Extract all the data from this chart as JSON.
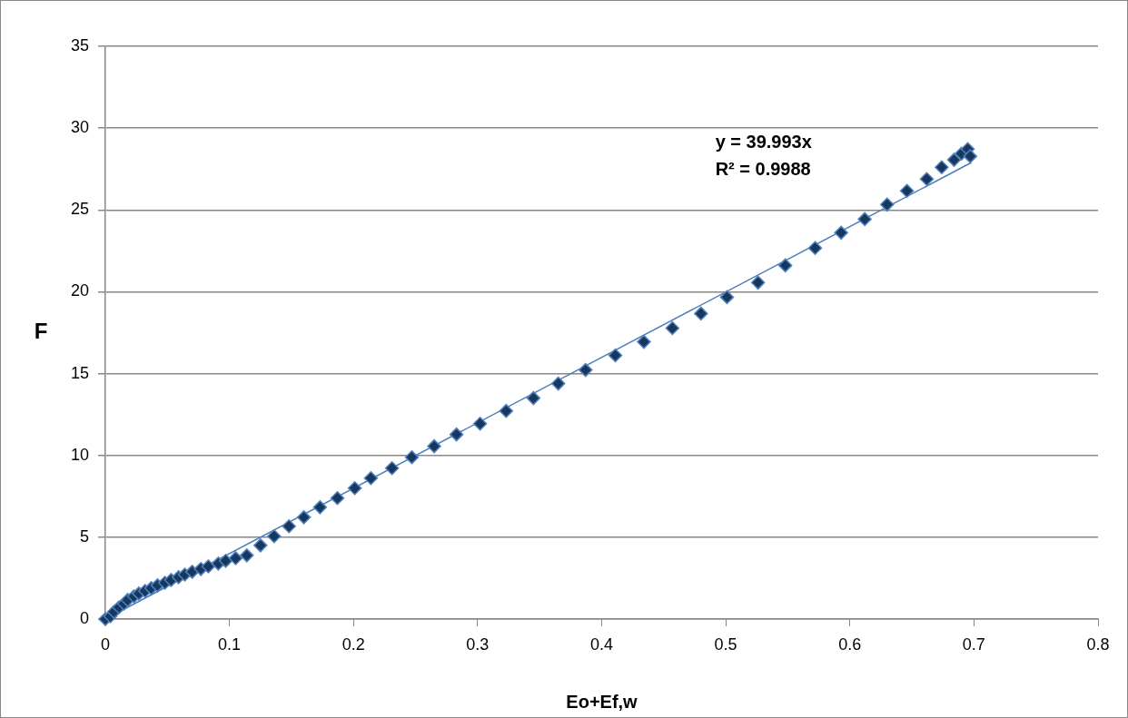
{
  "chart_data": {
    "type": "scatter",
    "xlabel": "Eo+Ef,w",
    "ylabel": "F",
    "xlim": [
      0,
      0.8
    ],
    "xticks": [
      0,
      0.1,
      0.2,
      0.3,
      0.4,
      0.5,
      0.6,
      0.7,
      0.8
    ],
    "ylim": [
      0,
      35
    ],
    "yticks": [
      0,
      5,
      10,
      15,
      20,
      25,
      30,
      35
    ],
    "grid": "y",
    "marker": "diamond",
    "legend": false,
    "annotations": [
      "y = 39.993x",
      "R² = 0.9988"
    ],
    "series": [
      {
        "type": "scatter",
        "color": "#17375e",
        "x": [
          0,
          0.004,
          0.007,
          0.011,
          0.015,
          0.018,
          0.023,
          0.027,
          0.032,
          0.037,
          0.042,
          0.048,
          0.053,
          0.059,
          0.064,
          0.07,
          0.077,
          0.083,
          0.091,
          0.097,
          0.105,
          0.114,
          0.125,
          0.136,
          0.148,
          0.16,
          0.173,
          0.187,
          0.201,
          0.214,
          0.231,
          0.247,
          0.265,
          0.283,
          0.302,
          0.323,
          0.345,
          0.365,
          0.387,
          0.411,
          0.434,
          0.457,
          0.48,
          0.501,
          0.526,
          0.548,
          0.572,
          0.593,
          0.612,
          0.63,
          0.646,
          0.662,
          0.674,
          0.684,
          0.69,
          0.695,
          0.697
        ],
        "values": [
          0,
          0.17,
          0.44,
          0.72,
          0.94,
          1.17,
          1.39,
          1.56,
          1.72,
          1.89,
          2.06,
          2.22,
          2.39,
          2.56,
          2.72,
          2.89,
          3.06,
          3.22,
          3.39,
          3.56,
          3.72,
          3.89,
          4.5,
          5.06,
          5.67,
          6.22,
          6.83,
          7.39,
          8.0,
          8.61,
          9.22,
          9.89,
          10.56,
          11.28,
          11.94,
          12.72,
          13.5,
          14.39,
          15.22,
          16.11,
          16.94,
          17.78,
          18.67,
          19.67,
          20.56,
          21.61,
          22.67,
          23.61,
          24.44,
          25.33,
          26.17,
          26.89,
          27.61,
          28.06,
          28.44,
          28.72,
          28.28
        ]
      },
      {
        "type": "line",
        "color": "#4a7ebb",
        "marker": "none",
        "x": [
          0,
          0.698
        ],
        "values": [
          0,
          27.9
        ]
      }
    ]
  }
}
